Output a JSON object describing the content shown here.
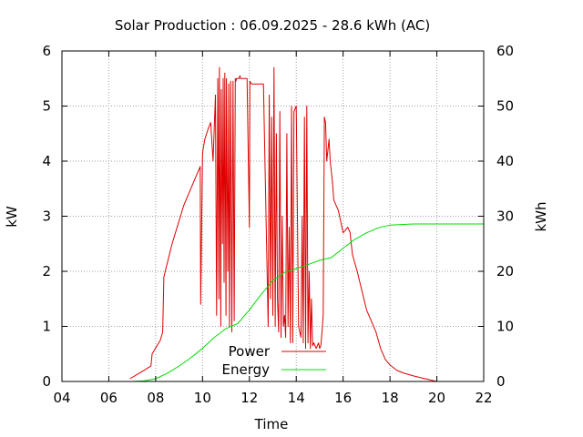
{
  "chart_data": {
    "type": "line",
    "title": "Solar Production : 06.09.2025 - 28.6 kWh (AC)",
    "xlabel": "Time",
    "ylabel": "kW",
    "y2label": "kWh",
    "xlim": [
      4,
      22
    ],
    "ylim": [
      0,
      6
    ],
    "y2lim": [
      0,
      60
    ],
    "x_ticks": [
      "04",
      "06",
      "08",
      "10",
      "12",
      "14",
      "16",
      "18",
      "20",
      "22"
    ],
    "y_ticks": [
      "0",
      "1",
      "2",
      "3",
      "4",
      "5",
      "6"
    ],
    "y2_ticks": [
      "0",
      "10",
      "20",
      "30",
      "40",
      "50",
      "60"
    ],
    "grid": true,
    "legend_position": "bottom-center",
    "series": [
      {
        "name": "Power",
        "axis": "left",
        "color": "#dd0000",
        "x": [
          6.9,
          7.3,
          7.8,
          7.85,
          8.2,
          8.3,
          8.35,
          8.7,
          9.2,
          9.7,
          9.9,
          9.92,
          10.0,
          10.02,
          10.1,
          10.25,
          10.35,
          10.45,
          10.55,
          10.6,
          10.65,
          10.7,
          10.72,
          10.78,
          10.8,
          10.85,
          10.88,
          10.92,
          10.95,
          11.0,
          11.02,
          11.08,
          11.12,
          11.15,
          11.2,
          11.25,
          11.3,
          11.35,
          11.4,
          11.42,
          11.45,
          11.5,
          11.55,
          11.6,
          11.62,
          11.7,
          11.8,
          11.9,
          12.0,
          12.02,
          12.1,
          12.2,
          12.3,
          12.6,
          12.8,
          12.85,
          12.9,
          12.95,
          13.0,
          13.05,
          13.1,
          13.15,
          13.2,
          13.25,
          13.3,
          13.35,
          13.4,
          13.45,
          13.5,
          13.55,
          13.6,
          13.65,
          13.7,
          13.75,
          13.8,
          13.85,
          13.9,
          14.0,
          14.1,
          14.2,
          14.25,
          14.3,
          14.35,
          14.4,
          14.45,
          14.5,
          14.55,
          14.6,
          14.65,
          14.7,
          14.75,
          14.8,
          14.85,
          14.9,
          14.95,
          15.0,
          15.05,
          15.1,
          15.15,
          15.2,
          15.25,
          15.3,
          15.4,
          15.45,
          15.5,
          15.55,
          15.6,
          15.7,
          15.8,
          15.9,
          16.0,
          16.2,
          16.3,
          16.32,
          16.4,
          16.6,
          17.0,
          17.4,
          17.6,
          17.7,
          17.8,
          17.9,
          18.0,
          18.3,
          18.6,
          19.0,
          19.5,
          20.0,
          20.05
        ],
        "values": [
          0.05,
          0.15,
          0.28,
          0.5,
          0.75,
          0.9,
          1.9,
          2.5,
          3.2,
          3.7,
          3.9,
          1.4,
          4.1,
          4.2,
          4.4,
          4.6,
          4.7,
          4.0,
          5.2,
          1.2,
          5.5,
          1.5,
          5.7,
          1.0,
          5.3,
          2.5,
          5.5,
          1.8,
          5.6,
          1.2,
          5.5,
          2.0,
          5.4,
          1.0,
          5.45,
          0.9,
          5.45,
          1.1,
          5.5,
          5.45,
          5.5,
          5.5,
          5.5,
          5.55,
          5.5,
          5.5,
          5.5,
          5.5,
          2.8,
          5.45,
          5.4,
          5.4,
          5.4,
          5.4,
          1.0,
          5.2,
          1.5,
          4.8,
          1.2,
          5.7,
          1.0,
          4.5,
          1.5,
          0.9,
          4.9,
          0.8,
          3.0,
          1.0,
          1.2,
          0.8,
          4.5,
          1.0,
          2.8,
          0.7,
          5.0,
          0.7,
          4.9,
          5.0,
          1.0,
          0.8,
          3.0,
          0.7,
          4.8,
          0.6,
          5.0,
          0.7,
          2.0,
          0.6,
          1.5,
          0.65,
          0.7,
          0.65,
          0.6,
          0.65,
          0.7,
          0.6,
          0.65,
          0.9,
          1.2,
          4.8,
          4.7,
          4.0,
          4.4,
          4.0,
          3.8,
          3.6,
          3.3,
          3.2,
          3.1,
          2.9,
          2.7,
          2.8,
          2.7,
          2.6,
          2.3,
          2.0,
          1.3,
          0.9,
          0.6,
          0.5,
          0.4,
          0.35,
          0.3,
          0.2,
          0.15,
          0.1,
          0.05,
          0.0,
          0.0
        ],
        "legend": "Power"
      },
      {
        "name": "Energy",
        "axis": "right",
        "color": "#00dd00",
        "x": [
          7.0,
          7.5,
          8.0,
          8.5,
          9.0,
          9.5,
          10.0,
          10.5,
          11.0,
          11.5,
          12.0,
          12.5,
          13.0,
          13.5,
          14.0,
          14.5,
          15.0,
          15.5,
          16.0,
          16.5,
          17.0,
          17.5,
          18.0,
          18.5,
          19.0,
          19.5,
          20.0,
          21.0,
          22.0
        ],
        "values": [
          0.0,
          0.1,
          0.5,
          1.5,
          2.8,
          4.3,
          6.0,
          8.0,
          9.6,
          10.5,
          13.0,
          15.8,
          18.3,
          19.8,
          20.5,
          21.2,
          22.0,
          22.5,
          24.2,
          25.8,
          27.0,
          27.9,
          28.4,
          28.5,
          28.6,
          28.6,
          28.6,
          28.6,
          28.6
        ],
        "legend": "Energy"
      }
    ]
  }
}
